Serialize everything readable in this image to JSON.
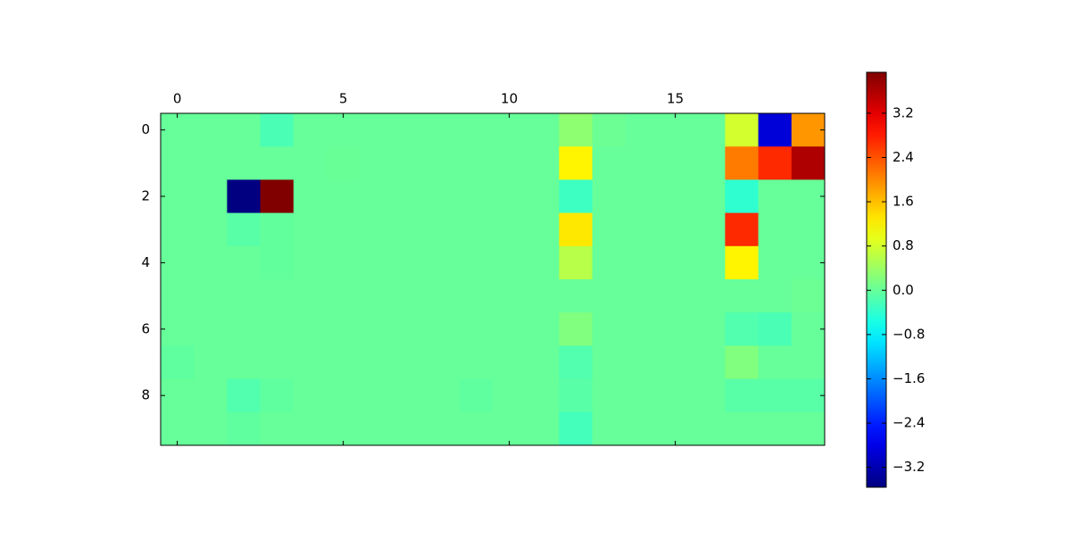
{
  "chart_data": {
    "type": "heatmap",
    "colormap": "jet",
    "values": [
      [
        0,
        0,
        0,
        -0.2,
        0,
        0,
        0,
        0,
        0,
        0,
        0,
        0,
        0.3,
        0.05,
        0,
        0,
        0,
        0.8,
        -2.9,
        1.9
      ],
      [
        0,
        0,
        0,
        0,
        0,
        0.02,
        0,
        0,
        0,
        0,
        0,
        0,
        1.2,
        0,
        0,
        0,
        0,
        2.1,
        2.7,
        3.6
      ],
      [
        0,
        0,
        -3.56,
        3.94,
        0,
        0,
        0,
        0,
        0,
        0,
        0,
        0,
        -0.3,
        0,
        0,
        0,
        0,
        -0.4,
        0,
        0
      ],
      [
        0,
        0,
        -0.1,
        -0.03,
        0,
        0,
        0,
        0,
        0,
        0,
        0,
        0,
        1.3,
        0,
        0,
        0,
        0,
        2.7,
        0,
        0
      ],
      [
        0,
        0,
        0,
        -0.03,
        0,
        0,
        0,
        0,
        0,
        0,
        0,
        0,
        0.6,
        0,
        0,
        0,
        0,
        1.2,
        0,
        0
      ],
      [
        0,
        0,
        0,
        0,
        0,
        0,
        0,
        0,
        0,
        0,
        0,
        0,
        0,
        0,
        0,
        0,
        0,
        0,
        0,
        0.05
      ],
      [
        0,
        0,
        0,
        0,
        0,
        0,
        0,
        0,
        0,
        0,
        0,
        0,
        0.2,
        0,
        0,
        0,
        0,
        -0.15,
        -0.2,
        0
      ],
      [
        -0.05,
        0,
        0,
        0,
        0,
        0,
        0,
        0,
        0,
        0,
        0,
        0,
        -0.15,
        0,
        0,
        0,
        0,
        0.2,
        0,
        0
      ],
      [
        0,
        0,
        -0.15,
        -0.05,
        0,
        0,
        0,
        0,
        0,
        -0.05,
        0,
        0,
        -0.1,
        0,
        0,
        0,
        0,
        -0.1,
        -0.1,
        -0.1
      ],
      [
        0,
        0,
        -0.05,
        0,
        0,
        0,
        0,
        0,
        0,
        0,
        0,
        0,
        -0.25,
        0,
        0,
        0,
        0,
        0,
        0,
        0
      ]
    ],
    "xlim": [
      -0.5,
      19.5
    ],
    "xticks": [
      0,
      5,
      10,
      15
    ],
    "ylim": [
      -0.5,
      9.5
    ],
    "yticks": [
      0,
      2,
      4,
      6,
      8
    ],
    "clim": [
      -3.56,
      3.94
    ],
    "cticks": [
      {
        "value": -3.2,
        "label": "−3.2"
      },
      {
        "value": -2.4,
        "label": "−2.4"
      },
      {
        "value": -1.6,
        "label": "−1.6"
      },
      {
        "value": -0.8,
        "label": "−0.8"
      },
      {
        "value": 0,
        "label": "0.0"
      },
      0.8,
      1.6,
      2.4,
      3.2
    ]
  }
}
